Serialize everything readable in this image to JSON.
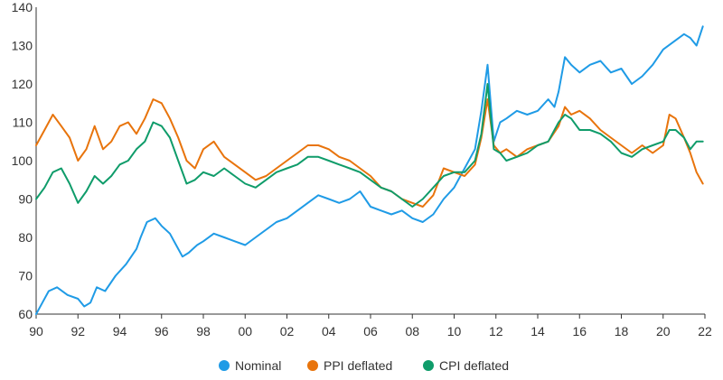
{
  "chart_data": {
    "type": "line",
    "title": "",
    "xlabel": "",
    "ylabel": "",
    "x_tick_labels": [
      "90",
      "92",
      "94",
      "96",
      "98",
      "00",
      "02",
      "04",
      "06",
      "08",
      "10",
      "12",
      "14",
      "16",
      "18",
      "20",
      "22"
    ],
    "x_ticks": [
      1990,
      1992,
      1994,
      1996,
      1998,
      2000,
      2002,
      2004,
      2006,
      2008,
      2010,
      2012,
      2014,
      2016,
      2018,
      2020,
      2022
    ],
    "y_ticks": [
      60,
      70,
      80,
      90,
      100,
      110,
      120,
      130,
      140
    ],
    "xlim": [
      1990,
      2022
    ],
    "ylim": [
      60,
      140
    ],
    "grid": false,
    "legend_position": "bottom",
    "series": [
      {
        "name": "Nominal",
        "color": "#1f9be6",
        "x": [
          1990.0,
          1990.3,
          1990.6,
          1991.0,
          1991.5,
          1992.0,
          1992.3,
          1992.6,
          1992.9,
          1993.3,
          1993.8,
          1994.3,
          1994.8,
          1995.0,
          1995.3,
          1995.7,
          1996.0,
          1996.4,
          1996.7,
          1997.0,
          1997.3,
          1997.7,
          1998.0,
          1998.5,
          1999.0,
          1999.5,
          2000.0,
          2000.5,
          2001.0,
          2001.5,
          2002.0,
          2002.5,
          2003.0,
          2003.5,
          2004.0,
          2004.5,
          2005.0,
          2005.5,
          2006.0,
          2006.5,
          2007.0,
          2007.5,
          2008.0,
          2008.5,
          2009.0,
          2009.5,
          2010.0,
          2010.5,
          2011.0,
          2011.3,
          2011.6,
          2011.9,
          2012.2,
          2012.5,
          2013.0,
          2013.5,
          2014.0,
          2014.5,
          2014.8,
          2015.0,
          2015.3,
          2015.6,
          2016.0,
          2016.5,
          2017.0,
          2017.5,
          2018.0,
          2018.5,
          2019.0,
          2019.5,
          2020.0,
          2020.5,
          2021.0,
          2021.3,
          2021.6,
          2021.9
        ],
        "y": [
          60,
          63,
          66,
          67,
          65,
          64,
          62,
          63,
          67,
          66,
          70,
          73,
          77,
          80,
          84,
          85,
          83,
          81,
          78,
          75,
          76,
          78,
          79,
          81,
          80,
          79,
          78,
          80,
          82,
          84,
          85,
          87,
          89,
          91,
          90,
          89,
          90,
          92,
          88,
          87,
          86,
          87,
          85,
          84,
          86,
          90,
          93,
          98,
          103,
          113,
          125,
          105,
          110,
          111,
          113,
          112,
          113,
          116,
          114,
          118,
          127,
          125,
          123,
          125,
          126,
          123,
          124,
          120,
          122,
          125,
          129,
          131,
          133,
          132,
          130,
          135
        ]
      },
      {
        "name": "PPI deflated",
        "color": "#e8740c",
        "x": [
          1990.0,
          1990.4,
          1990.8,
          1991.2,
          1991.6,
          1992.0,
          1992.4,
          1992.8,
          1993.2,
          1993.6,
          1994.0,
          1994.4,
          1994.8,
          1995.2,
          1995.6,
          1996.0,
          1996.4,
          1996.8,
          1997.2,
          1997.6,
          1998.0,
          1998.5,
          1999.0,
          1999.5,
          2000.0,
          2000.5,
          2001.0,
          2001.5,
          2002.0,
          2002.5,
          2003.0,
          2003.5,
          2004.0,
          2004.5,
          2005.0,
          2005.5,
          2006.0,
          2006.5,
          2007.0,
          2007.5,
          2008.0,
          2008.5,
          2009.0,
          2009.5,
          2010.0,
          2010.5,
          2011.0,
          2011.3,
          2011.6,
          2011.9,
          2012.2,
          2012.5,
          2013.0,
          2013.5,
          2014.0,
          2014.5,
          2015.0,
          2015.3,
          2015.6,
          2016.0,
          2016.5,
          2017.0,
          2017.5,
          2018.0,
          2018.5,
          2019.0,
          2019.5,
          2020.0,
          2020.3,
          2020.6,
          2021.0,
          2021.3,
          2021.6,
          2021.9
        ],
        "y": [
          104,
          108,
          112,
          109,
          106,
          100,
          103,
          109,
          103,
          105,
          109,
          110,
          107,
          111,
          116,
          115,
          111,
          106,
          100,
          98,
          103,
          105,
          101,
          99,
          97,
          95,
          96,
          98,
          100,
          102,
          104,
          104,
          103,
          101,
          100,
          98,
          96,
          93,
          92,
          90,
          89,
          88,
          91,
          98,
          97,
          96,
          99,
          106,
          116,
          104,
          102,
          103,
          101,
          103,
          104,
          105,
          109,
          114,
          112,
          113,
          111,
          108,
          106,
          104,
          102,
          104,
          102,
          104,
          112,
          111,
          106,
          102,
          97,
          94
        ]
      },
      {
        "name": "CPI deflated",
        "color": "#0f9c6a",
        "x": [
          1990.0,
          1990.4,
          1990.8,
          1991.2,
          1991.6,
          1992.0,
          1992.4,
          1992.8,
          1993.2,
          1993.6,
          1994.0,
          1994.4,
          1994.8,
          1995.2,
          1995.6,
          1996.0,
          1996.4,
          1996.8,
          1997.2,
          1997.6,
          1998.0,
          1998.5,
          1999.0,
          1999.5,
          2000.0,
          2000.5,
          2001.0,
          2001.5,
          2002.0,
          2002.5,
          2003.0,
          2003.5,
          2004.0,
          2004.5,
          2005.0,
          2005.5,
          2006.0,
          2006.5,
          2007.0,
          2007.5,
          2008.0,
          2008.5,
          2009.0,
          2009.5,
          2010.0,
          2010.5,
          2011.0,
          2011.3,
          2011.6,
          2011.9,
          2012.2,
          2012.5,
          2013.0,
          2013.5,
          2014.0,
          2014.5,
          2015.0,
          2015.3,
          2015.6,
          2016.0,
          2016.5,
          2017.0,
          2017.5,
          2018.0,
          2018.5,
          2019.0,
          2019.5,
          2020.0,
          2020.3,
          2020.6,
          2021.0,
          2021.3,
          2021.6,
          2021.9
        ],
        "y": [
          90,
          93,
          97,
          98,
          94,
          89,
          92,
          96,
          94,
          96,
          99,
          100,
          103,
          105,
          110,
          109,
          106,
          100,
          94,
          95,
          97,
          96,
          98,
          96,
          94,
          93,
          95,
          97,
          98,
          99,
          101,
          101,
          100,
          99,
          98,
          97,
          95,
          93,
          92,
          90,
          88,
          90,
          93,
          96,
          97,
          97,
          100,
          107,
          120,
          103,
          102,
          100,
          101,
          102,
          104,
          105,
          110,
          112,
          111,
          108,
          108,
          107,
          105,
          102,
          101,
          103,
          104,
          105,
          108,
          108,
          106,
          103,
          105,
          105
        ]
      }
    ]
  }
}
